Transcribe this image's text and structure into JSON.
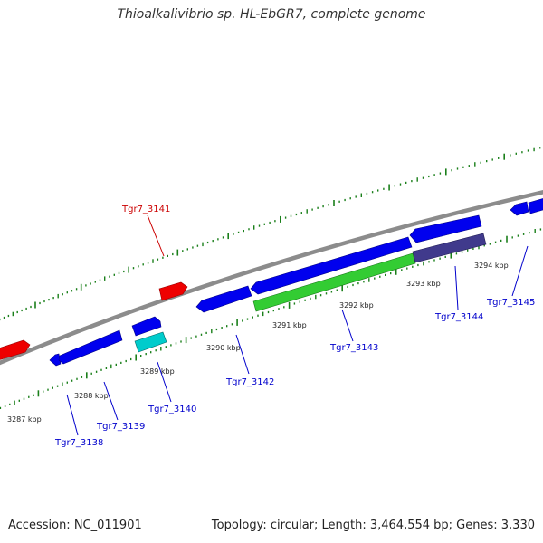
{
  "title": "Thioalkalivibrio sp. HL-EbGR7, complete genome",
  "footer": {
    "accession": "Accession: NC_011901",
    "topology": "Topology: circular; Length: 3,464,554 bp; Genes: 3,330"
  },
  "colors": {
    "backbone": "#909090",
    "forward_gene": "#0000ee",
    "reverse_gene": "#0000ee",
    "rna_gene": "#ee0000",
    "cds_green": "#33cc33",
    "cds_cyan": "#00cccc",
    "cds_purple": "#3f3a8a",
    "tick": "#1a7f1a",
    "label_blue": "#0000cc",
    "label_red": "#cc0000"
  },
  "tick_labels": [
    "3287 kbp",
    "3288 kbp",
    "3289 kbp",
    "3290 kbp",
    "3291 kbp",
    "3292 kbp",
    "3293 kbp",
    "3294 kbp"
  ],
  "gene_labels": [
    {
      "name": "Tgr7_3141",
      "color": "red"
    },
    {
      "name": "Tgr7_3138",
      "color": "blue"
    },
    {
      "name": "Tgr7_3139",
      "color": "blue"
    },
    {
      "name": "Tgr7_3140",
      "color": "blue"
    },
    {
      "name": "Tgr7_3142",
      "color": "blue"
    },
    {
      "name": "Tgr7_3143",
      "color": "blue"
    },
    {
      "name": "Tgr7_3144",
      "color": "blue"
    },
    {
      "name": "Tgr7_3145",
      "color": "blue"
    }
  ]
}
